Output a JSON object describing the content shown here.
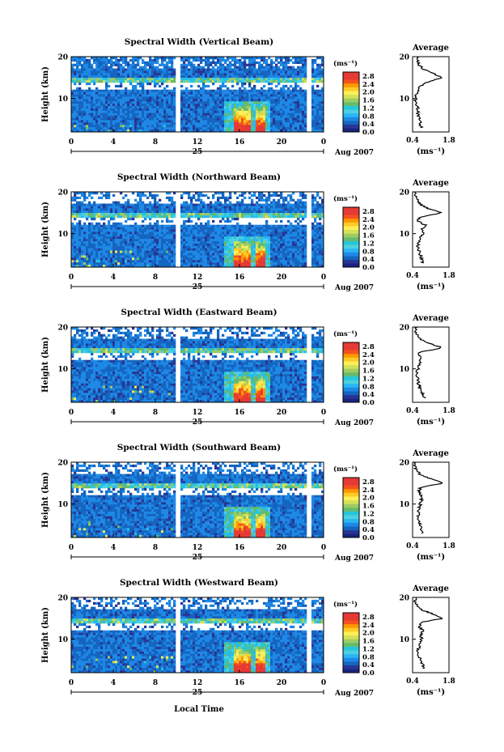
{
  "figure": {
    "xlabel_bottom": "Local Time",
    "date_label": "Aug 2007",
    "day_label": "25",
    "colorbar_unit": "(ms⁻¹)",
    "colorbar_ticks": [
      "2.8",
      "2.4",
      "2.0",
      "1.6",
      "1.2",
      "0.8",
      "0.4",
      "0.0"
    ],
    "colorscale": [
      "#1a237e",
      "#283593",
      "#1565c0",
      "#1e88e5",
      "#29b6f6",
      "#4dd0e1",
      "#26c6da",
      "#66bb6a",
      "#9ccc65",
      "#d4e157",
      "#ffee58",
      "#ffca28",
      "#ff9800",
      "#f4511e",
      "#e53935",
      "#e53935"
    ],
    "average_title": "Average",
    "average_xticks": [
      "0.4",
      "1.8"
    ],
    "average_xlabel": "(ms⁻¹)"
  },
  "chart_data": [
    {
      "type": "heatmap",
      "title": "Spectral Width (Vertical Beam)",
      "ylabel": "Height (km)",
      "xticks": [
        "0",
        "4",
        "8",
        "12",
        "16",
        "20",
        "0"
      ],
      "yticks": [
        "20",
        "10"
      ],
      "xlim": [
        0,
        24
      ],
      "ylim": [
        2,
        20
      ],
      "clim": [
        0.0,
        3.0
      ],
      "average_profile": {
        "height_km": [
          3,
          4,
          5,
          6,
          7,
          8,
          9,
          10,
          11,
          12,
          13,
          14,
          15,
          16,
          17,
          18,
          19,
          20
        ],
        "width_ms": [
          0.75,
          0.7,
          0.65,
          0.6,
          0.62,
          0.58,
          0.55,
          0.5,
          0.55,
          0.65,
          0.7,
          1.0,
          1.55,
          1.2,
          0.8,
          0.65,
          0.6,
          0.55
        ]
      }
    },
    {
      "type": "heatmap",
      "title": "Spectral Width (Northward Beam)",
      "ylabel": "Height (km)",
      "xticks": [
        "0",
        "4",
        "8",
        "12",
        "16",
        "20",
        "0"
      ],
      "yticks": [
        "20",
        "10"
      ],
      "xlim": [
        0,
        24
      ],
      "ylim": [
        2,
        20
      ],
      "clim": [
        0.0,
        3.0
      ],
      "average_profile": {
        "height_km": [
          3,
          4,
          5,
          6,
          7,
          8,
          9,
          10,
          11,
          12,
          13,
          14,
          15,
          16,
          17,
          18,
          19,
          20
        ],
        "width_ms": [
          0.8,
          0.75,
          0.7,
          0.65,
          0.6,
          0.62,
          0.7,
          0.8,
          0.75,
          0.9,
          0.6,
          0.7,
          1.55,
          1.0,
          0.7,
          0.6,
          0.5,
          0.5
        ]
      }
    },
    {
      "type": "heatmap",
      "title": "Spectral Width (Eastward Beam)",
      "ylabel": "Height (km)",
      "xticks": [
        "0",
        "4",
        "8",
        "12",
        "16",
        "20",
        "0"
      ],
      "yticks": [
        "20",
        "10"
      ],
      "xlim": [
        0,
        24
      ],
      "ylim": [
        2,
        20
      ],
      "clim": [
        0.0,
        3.0
      ],
      "average_profile": {
        "height_km": [
          3,
          4,
          5,
          6,
          7,
          8,
          9,
          10,
          11,
          12,
          13,
          14,
          15,
          16,
          17,
          18,
          19,
          20
        ],
        "width_ms": [
          0.85,
          0.8,
          0.7,
          0.65,
          0.6,
          0.6,
          0.55,
          0.6,
          0.65,
          0.7,
          0.7,
          0.65,
          1.55,
          1.1,
          0.7,
          0.6,
          0.5,
          0.55
        ]
      }
    },
    {
      "type": "heatmap",
      "title": "Spectral Width (Southward Beam)",
      "ylabel": "Height (km)",
      "xticks": [
        "0",
        "4",
        "8",
        "12",
        "16",
        "20",
        "0"
      ],
      "yticks": [
        "20",
        "10"
      ],
      "xlim": [
        0,
        24
      ],
      "ylim": [
        2,
        20
      ],
      "clim": [
        0.0,
        3.0
      ],
      "average_profile": {
        "height_km": [
          3,
          4,
          5,
          6,
          7,
          8,
          9,
          10,
          11,
          12,
          13,
          14,
          15,
          16,
          17,
          18,
          19,
          20
        ],
        "width_ms": [
          0.8,
          0.75,
          0.7,
          0.65,
          0.6,
          0.62,
          0.65,
          0.7,
          0.75,
          0.7,
          0.65,
          0.7,
          1.6,
          1.1,
          0.7,
          0.55,
          0.5,
          0.5
        ]
      }
    },
    {
      "type": "heatmap",
      "title": "Spectral Width (Westward Beam)",
      "ylabel": "Height (km)",
      "xticks": [
        "0",
        "4",
        "8",
        "12",
        "16",
        "20",
        "0"
      ],
      "yticks": [
        "20",
        "10"
      ],
      "xlim": [
        0,
        24
      ],
      "ylim": [
        2,
        20
      ],
      "clim": [
        0.0,
        3.0
      ],
      "average_profile": {
        "height_km": [
          3,
          4,
          5,
          6,
          7,
          8,
          9,
          10,
          11,
          12,
          13,
          14,
          15,
          16,
          17,
          18,
          19,
          20
        ],
        "width_ms": [
          0.85,
          0.8,
          0.7,
          0.65,
          0.6,
          0.65,
          0.7,
          0.75,
          0.7,
          0.8,
          0.65,
          0.7,
          1.6,
          1.2,
          0.75,
          0.6,
          0.5,
          0.55
        ]
      }
    }
  ]
}
